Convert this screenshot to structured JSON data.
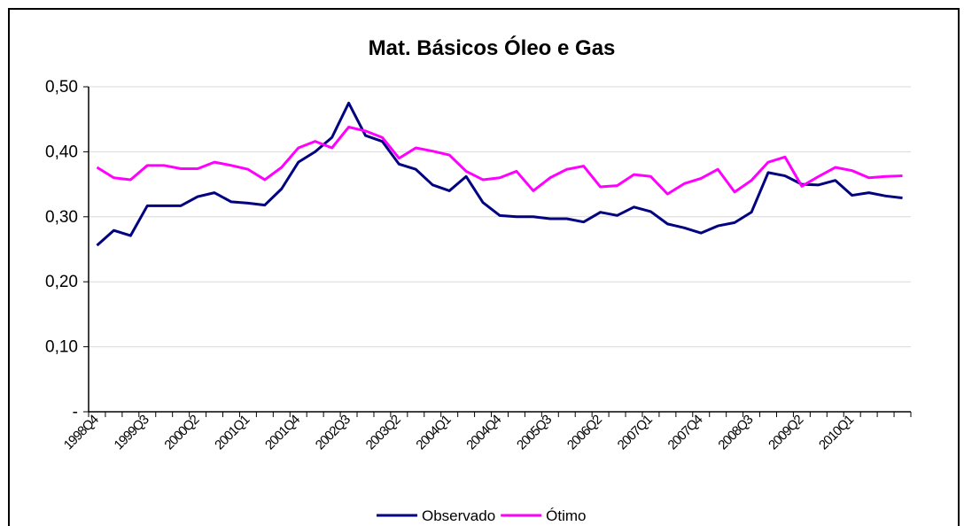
{
  "chart_data": {
    "type": "line",
    "title": "Mat. Básicos Óleo e Gas",
    "categories": [
      "1998Q4",
      null,
      null,
      "1999Q3",
      null,
      null,
      "2000Q2",
      null,
      null,
      "2001Q1",
      null,
      null,
      "2001Q4",
      null,
      null,
      "2002Q3",
      null,
      null,
      "2003Q2",
      null,
      null,
      "2004Q1",
      null,
      null,
      "2004Q4",
      null,
      null,
      "2005Q3",
      null,
      null,
      "2006Q2",
      null,
      null,
      "2007Q1",
      null,
      null,
      "2007Q4",
      null,
      null,
      "2008Q3",
      null,
      null,
      "2009Q2",
      null,
      null,
      "2010Q1",
      null,
      null,
      null
    ],
    "series": [
      {
        "name": "Observado",
        "color": "#000080",
        "values": [
          0.256,
          0.279,
          0.271,
          0.317,
          0.317,
          0.317,
          0.331,
          0.337,
          0.323,
          0.321,
          0.318,
          0.343,
          0.384,
          0.4,
          0.422,
          0.475,
          0.425,
          0.416,
          0.381,
          0.373,
          0.349,
          0.34,
          0.362,
          0.322,
          0.302,
          0.3,
          0.3,
          0.297,
          0.297,
          0.292,
          0.307,
          0.302,
          0.315,
          0.308,
          0.289,
          0.283,
          0.275,
          0.286,
          0.291,
          0.307,
          0.368,
          0.363,
          0.35,
          0.349,
          0.356,
          0.333,
          0.337,
          0.332,
          0.329
        ]
      },
      {
        "name": "Ótimo",
        "color": "#ff00ff",
        "values": [
          0.376,
          0.36,
          0.357,
          0.379,
          0.379,
          0.374,
          0.374,
          0.384,
          0.379,
          0.373,
          0.357,
          0.376,
          0.406,
          0.416,
          0.406,
          0.438,
          0.432,
          0.422,
          0.39,
          0.406,
          0.401,
          0.395,
          0.37,
          0.357,
          0.36,
          0.37,
          0.34,
          0.36,
          0.373,
          0.378,
          0.346,
          0.348,
          0.365,
          0.362,
          0.335,
          0.351,
          0.359,
          0.373,
          0.338,
          0.356,
          0.384,
          0.392,
          0.347,
          0.362,
          0.376,
          0.371,
          0.36,
          0.362,
          0.363
        ]
      }
    ],
    "ylim": [
      0,
      0.5
    ],
    "yticks": [
      {
        "value": 0,
        "label": "-"
      },
      {
        "value": 0.1,
        "label": "0,10"
      },
      {
        "value": 0.2,
        "label": "0,20"
      },
      {
        "value": 0.3,
        "label": "0,30"
      },
      {
        "value": 0.4,
        "label": "0,40"
      },
      {
        "value": 0.5,
        "label": "0,50"
      }
    ],
    "grid": true
  }
}
